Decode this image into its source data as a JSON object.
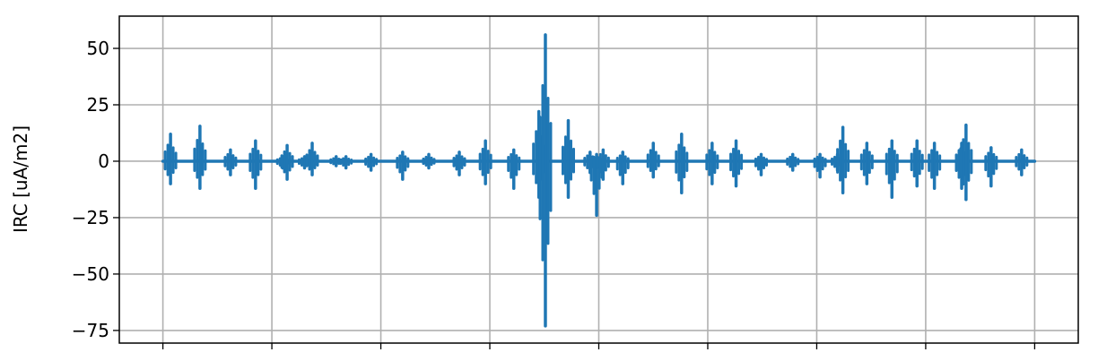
{
  "chart_data": {
    "type": "line",
    "title": "",
    "xlabel": "",
    "ylabel": "IRC [uA/m2]",
    "xlim": [
      -0.4,
      8.4
    ],
    "ylim": [
      -80.6,
      64.3
    ],
    "xticks": [
      0,
      1,
      2,
      3,
      4,
      5,
      6,
      7,
      8
    ],
    "xtick_labels": [],
    "yticks": [
      50,
      25,
      0,
      -25,
      -50,
      -75
    ],
    "ytick_labels": [
      "50",
      "25",
      "0",
      "−25",
      "−50",
      "−75"
    ],
    "grid": true,
    "line_color": "#1f77b4",
    "baseline_range": [
      0,
      8
    ],
    "bursts": [
      {
        "x": 0.07,
        "max": 12,
        "min": -10
      },
      {
        "x": 0.34,
        "max": 15.5,
        "min": -12
      },
      {
        "x": 0.62,
        "max": 5,
        "min": -6
      },
      {
        "x": 0.85,
        "max": 9,
        "min": -12
      },
      {
        "x": 1.1,
        "max": 2,
        "min": -3
      },
      {
        "x": 1.14,
        "max": 7,
        "min": -8
      },
      {
        "x": 1.3,
        "max": 2,
        "min": -3
      },
      {
        "x": 1.37,
        "max": 8,
        "min": -6
      },
      {
        "x": 1.59,
        "max": 2,
        "min": -2
      },
      {
        "x": 1.68,
        "max": 2,
        "min": -3
      },
      {
        "x": 1.91,
        "max": 3,
        "min": -4
      },
      {
        "x": 2.2,
        "max": 4,
        "min": -8
      },
      {
        "x": 2.44,
        "max": 3,
        "min": -3
      },
      {
        "x": 2.72,
        "max": 4,
        "min": -6
      },
      {
        "x": 2.96,
        "max": 9,
        "min": -10
      },
      {
        "x": 3.22,
        "max": 5,
        "min": -12
      },
      {
        "x": 3.45,
        "max": 22,
        "min": -16
      },
      {
        "x": 3.51,
        "max": 56,
        "min": -73
      },
      {
        "x": 3.72,
        "max": 18,
        "min": -16
      },
      {
        "x": 3.92,
        "max": 4,
        "min": -5
      },
      {
        "x": 3.98,
        "max": 3,
        "min": -24
      },
      {
        "x": 4.04,
        "max": 5,
        "min": -8
      },
      {
        "x": 4.22,
        "max": 4,
        "min": -10
      },
      {
        "x": 4.5,
        "max": 8,
        "min": -7
      },
      {
        "x": 4.76,
        "max": 12,
        "min": -14
      },
      {
        "x": 5.04,
        "max": 8,
        "min": -10
      },
      {
        "x": 5.26,
        "max": 9,
        "min": -11
      },
      {
        "x": 5.49,
        "max": 3,
        "min": -6
      },
      {
        "x": 5.78,
        "max": 3,
        "min": -4
      },
      {
        "x": 6.03,
        "max": 3,
        "min": -7
      },
      {
        "x": 6.19,
        "max": 3,
        "min": -4
      },
      {
        "x": 6.24,
        "max": 15,
        "min": -14
      },
      {
        "x": 6.46,
        "max": 8,
        "min": -10
      },
      {
        "x": 6.69,
        "max": 9,
        "min": -16
      },
      {
        "x": 6.92,
        "max": 9,
        "min": -11
      },
      {
        "x": 7.08,
        "max": 8,
        "min": -12
      },
      {
        "x": 7.33,
        "max": 8,
        "min": -12
      },
      {
        "x": 7.37,
        "max": 16,
        "min": -17
      },
      {
        "x": 7.6,
        "max": 6,
        "min": -11
      },
      {
        "x": 7.88,
        "max": 5,
        "min": -6
      }
    ]
  }
}
